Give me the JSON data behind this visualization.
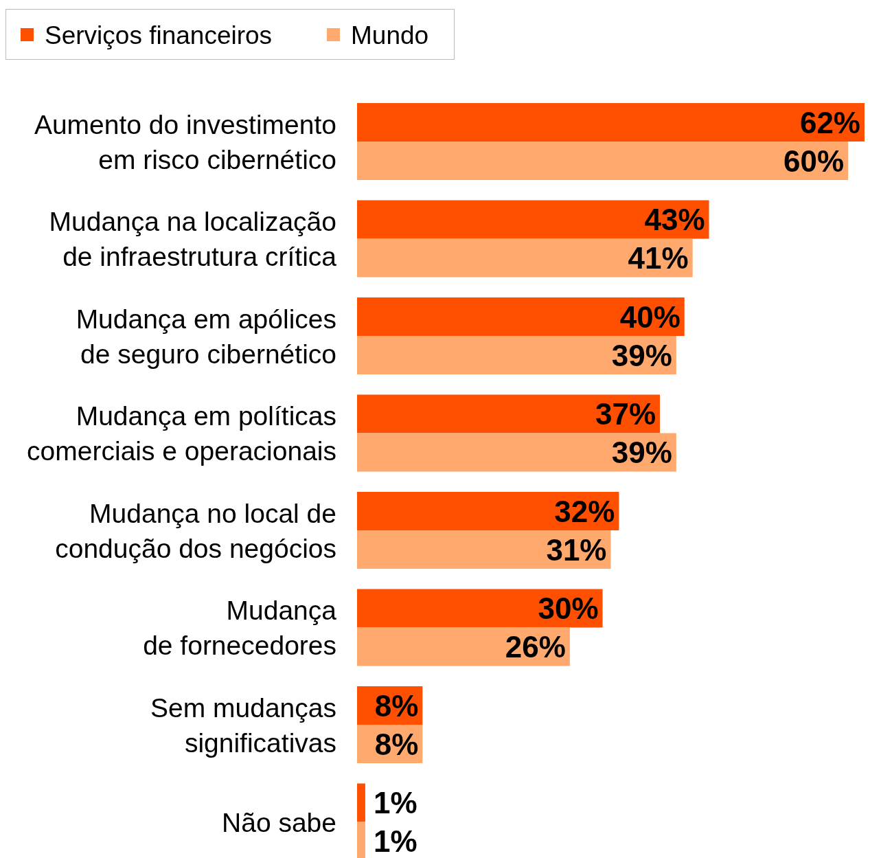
{
  "chart_data": {
    "type": "bar",
    "orientation": "horizontal",
    "legend": "top left",
    "categories": [
      "Aumento do investimento\nem risco cibernético",
      "Mudança na localização\nde infraestrutura crítica",
      "Mudança em apólices\nde seguro cibernético",
      "Mudança em políticas\ncomerciais e operacionais",
      "Mudança no local de\ncondução dos negócios",
      "Mudança\nde fornecedores",
      "Sem mudanças\nsignificativas",
      "Não sabe"
    ],
    "series": [
      {
        "name": "Serviços financeiros",
        "color": "#fe5000",
        "values": [
          62,
          43,
          40,
          37,
          32,
          30,
          8,
          1
        ],
        "value_labels": [
          "62%",
          "43%",
          "40%",
          "37%",
          "32%",
          "30%",
          "8%",
          "1%"
        ]
      },
      {
        "name": "Mundo",
        "color": "#ffa96e",
        "values": [
          60,
          41,
          39,
          39,
          31,
          26,
          8,
          1
        ],
        "value_labels": [
          "60%",
          "41%",
          "39%",
          "39%",
          "31%",
          "26%",
          "8%",
          "1%"
        ]
      }
    ]
  }
}
